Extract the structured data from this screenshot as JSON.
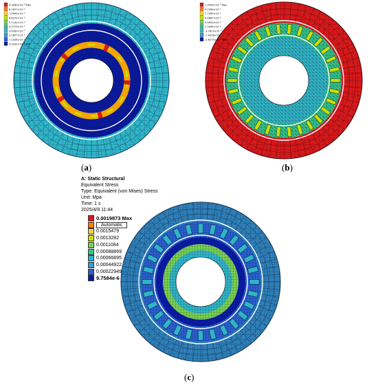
{
  "captions": {
    "a": "a",
    "b": "b",
    "c": "c"
  },
  "panel_a": {
    "legend": [
      {
        "label": "9.3260×10⁻⁴ Max",
        "color": "#d7191c"
      },
      {
        "label": "8.1627×10⁻⁴",
        "color": "#ff7f00"
      },
      {
        "label": "7.9994×10⁻⁴",
        "color": "#f4d03f"
      },
      {
        "label": "6.8570×10⁻⁴",
        "color": "#c8e000"
      },
      {
        "label": "5.7142×10⁻⁴",
        "color": "#7ad151"
      },
      {
        "label": "4.5713×10⁻⁴",
        "color": "#33c48a"
      },
      {
        "label": "3.4285×10⁻⁴",
        "color": "#2fb5c7"
      },
      {
        "label": "2.2857×10⁻⁴",
        "color": "#3a9bd6"
      },
      {
        "label": "1.1428×10⁻⁴",
        "color": "#2a5fcf"
      },
      {
        "label": "9.9200×10⁻⁸ Min",
        "color": "#0a1a9c"
      }
    ]
  },
  "panel_b": {
    "legend": [
      {
        "label": "1.3550×10⁻³ Max",
        "color": "#d7191c"
      },
      {
        "label": "9.2289×10⁻⁴",
        "color": "#ff7f00"
      },
      {
        "label": "7.7099×10⁻⁴",
        "color": "#f4d03f"
      },
      {
        "label": "6.4867×10⁻⁴",
        "color": "#c8e000"
      },
      {
        "label": "3.9633×10⁻⁴",
        "color": "#7ad151"
      },
      {
        "label": "1.3445×10⁻⁴",
        "color": "#33c48a"
      },
      {
        "label": "-3.7819×10⁻⁵",
        "color": "#2fb5c7"
      },
      {
        "label": "-1.0918×10⁻⁴",
        "color": "#3a9bd6"
      },
      {
        "label": "-2.6175×10⁻⁴ Min",
        "color": "#0a1a9c"
      }
    ]
  },
  "panel_c": {
    "title": "A: Static Structural",
    "subtitle": "Equivalent Stress",
    "type_line": "Type: Equivalent (von Mises) Stress",
    "unit_line": "Unit: Mpa",
    "time_line": "Time: 1 s",
    "date_line": "2025/4/9 11:44",
    "legend": [
      {
        "label": "0.0019873 Max",
        "color": "#d7191c",
        "bold": true
      },
      {
        "label": "Automatic",
        "color": "#ff7f00",
        "auto": true
      },
      {
        "label": "0.0015479",
        "color": "#f4d03f"
      },
      {
        "label": "0.0013282",
        "color": "#c8e000"
      },
      {
        "label": "0.0011084",
        "color": "#7ad151"
      },
      {
        "label": "0.00088869",
        "color": "#33c48a"
      },
      {
        "label": "0.00066895",
        "color": "#2fb5c7"
      },
      {
        "label": "0.00044922",
        "color": "#3a9bd6"
      },
      {
        "label": "0.00022949",
        "color": "#2a5fcf"
      },
      {
        "label": "9.7584e-6 Min",
        "color": "#0a1a9c",
        "bold": true
      }
    ]
  }
}
